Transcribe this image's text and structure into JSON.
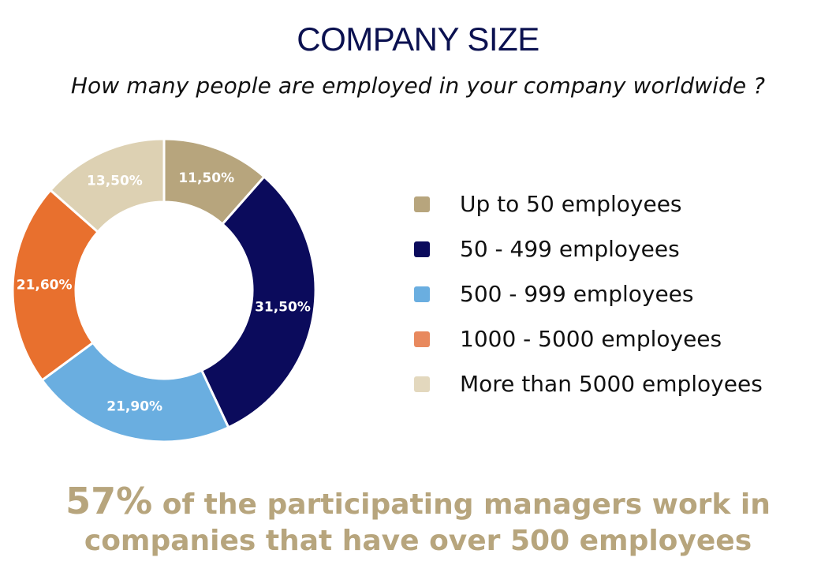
{
  "chart_data": {
    "type": "pie",
    "title": "COMPANY SIZE",
    "subtitle": "How many people are employed in your company worldwide ?",
    "categories": [
      "Up to 50 employees",
      "50 - 499 employees",
      "500 - 999 employees",
      "1000 - 5000 employees",
      "More than 5000 employees"
    ],
    "values": [
      11.5,
      31.5,
      21.9,
      21.6,
      13.5
    ],
    "data_labels": [
      "11,50%",
      "31,50%",
      "21,90%",
      "21,60%",
      "13,50%"
    ],
    "colors": [
      "#b7a57d",
      "#0b0b5c",
      "#6aaee0",
      "#e8702e",
      "#ddd1b3"
    ],
    "legend_colors": [
      "#b7a57d",
      "#0b0b5c",
      "#6aaee0",
      "#e8895e",
      "#e3d8be"
    ],
    "legend_position": "right",
    "donut": true
  },
  "note": {
    "highlight": "57%",
    "text_line1": " of the participating managers work in",
    "text_line2": "companies that have over 500 employees",
    "color": "#b7a57d"
  }
}
